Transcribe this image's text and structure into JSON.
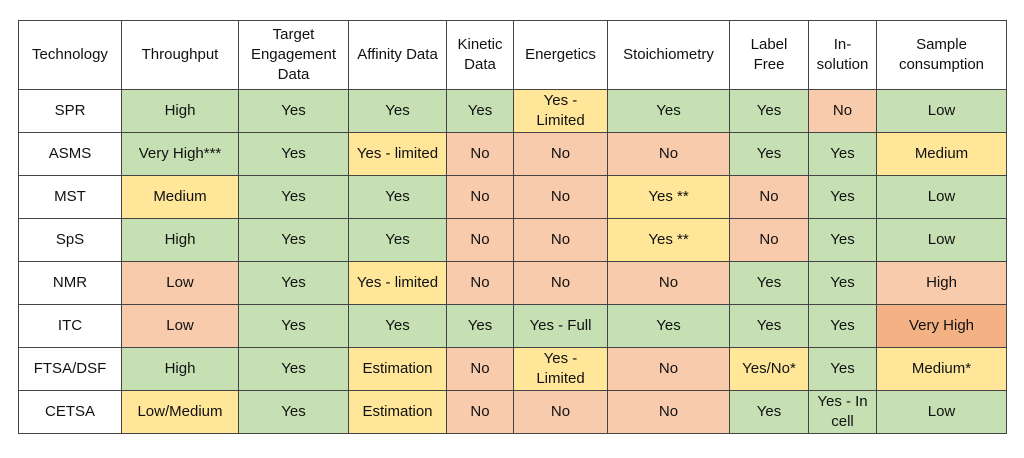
{
  "table": {
    "header": [
      "Technology",
      "Throughput",
      "Target Engagement Data",
      "Affinity Data",
      "Kinetic Data",
      "Energetics",
      "Stoichiometry",
      "Label Free",
      "In-solution",
      "Sample consumption"
    ],
    "rows": [
      [
        "SPR",
        "High",
        "Yes",
        "Yes",
        "Yes",
        "Yes - Limited",
        "Yes",
        "Yes",
        "No",
        "Low"
      ],
      [
        "ASMS",
        "Very High***",
        "Yes",
        "Yes - limited",
        "No",
        "No",
        "No",
        "Yes",
        "Yes",
        "Medium"
      ],
      [
        "MST",
        "Medium",
        "Yes",
        "Yes",
        "No",
        "No",
        "Yes **",
        "No",
        "Yes",
        "Low"
      ],
      [
        "SpS",
        "High",
        "Yes",
        "Yes",
        "No",
        "No",
        "Yes **",
        "No",
        "Yes",
        "Low"
      ],
      [
        "NMR",
        "Low",
        "Yes",
        "Yes - limited",
        "No",
        "No",
        "No",
        "Yes",
        "Yes",
        "High"
      ],
      [
        "ITC",
        "Low",
        "Yes",
        "Yes",
        "Yes",
        "Yes - Full",
        "Yes",
        "Yes",
        "Yes",
        "Very High"
      ],
      [
        "FTSA/DSF",
        "High",
        "Yes",
        "Estimation",
        "No",
        "Yes - Limited",
        "No",
        "Yes/No*",
        "Yes",
        "Medium*"
      ],
      [
        "CETSA",
        "Low/Medium",
        "Yes",
        "Estimation",
        "No",
        "No",
        "No",
        "Yes",
        "Yes - In cell",
        "Low"
      ]
    ],
    "cell_colors": [
      [
        "#ffffff",
        "#c6e0b4",
        "#c6e0b4",
        "#c6e0b4",
        "#c6e0b4",
        "#ffe699",
        "#c6e0b4",
        "#c6e0b4",
        "#f8cbad",
        "#c6e0b4"
      ],
      [
        "#ffffff",
        "#c6e0b4",
        "#c6e0b4",
        "#ffe699",
        "#f8cbad",
        "#f8cbad",
        "#f8cbad",
        "#c6e0b4",
        "#c6e0b4",
        "#ffe699"
      ],
      [
        "#ffffff",
        "#ffe699",
        "#c6e0b4",
        "#c6e0b4",
        "#f8cbad",
        "#f8cbad",
        "#ffe699",
        "#f8cbad",
        "#c6e0b4",
        "#c6e0b4"
      ],
      [
        "#ffffff",
        "#c6e0b4",
        "#c6e0b4",
        "#c6e0b4",
        "#f8cbad",
        "#f8cbad",
        "#ffe699",
        "#f8cbad",
        "#c6e0b4",
        "#c6e0b4"
      ],
      [
        "#ffffff",
        "#f8cbad",
        "#c6e0b4",
        "#ffe699",
        "#f8cbad",
        "#f8cbad",
        "#f8cbad",
        "#c6e0b4",
        "#c6e0b4",
        "#f8cbad"
      ],
      [
        "#ffffff",
        "#f8cbad",
        "#c6e0b4",
        "#c6e0b4",
        "#c6e0b4",
        "#c6e0b4",
        "#c6e0b4",
        "#c6e0b4",
        "#c6e0b4",
        "#f4b183"
      ],
      [
        "#ffffff",
        "#c6e0b4",
        "#c6e0b4",
        "#ffe699",
        "#f8cbad",
        "#ffe699",
        "#f8cbad",
        "#ffe699",
        "#c6e0b4",
        "#ffe699"
      ],
      [
        "#ffffff",
        "#ffe699",
        "#c6e0b4",
        "#ffe699",
        "#f8cbad",
        "#f8cbad",
        "#f8cbad",
        "#c6e0b4",
        "#c6e0b4",
        "#c6e0b4"
      ]
    ]
  }
}
